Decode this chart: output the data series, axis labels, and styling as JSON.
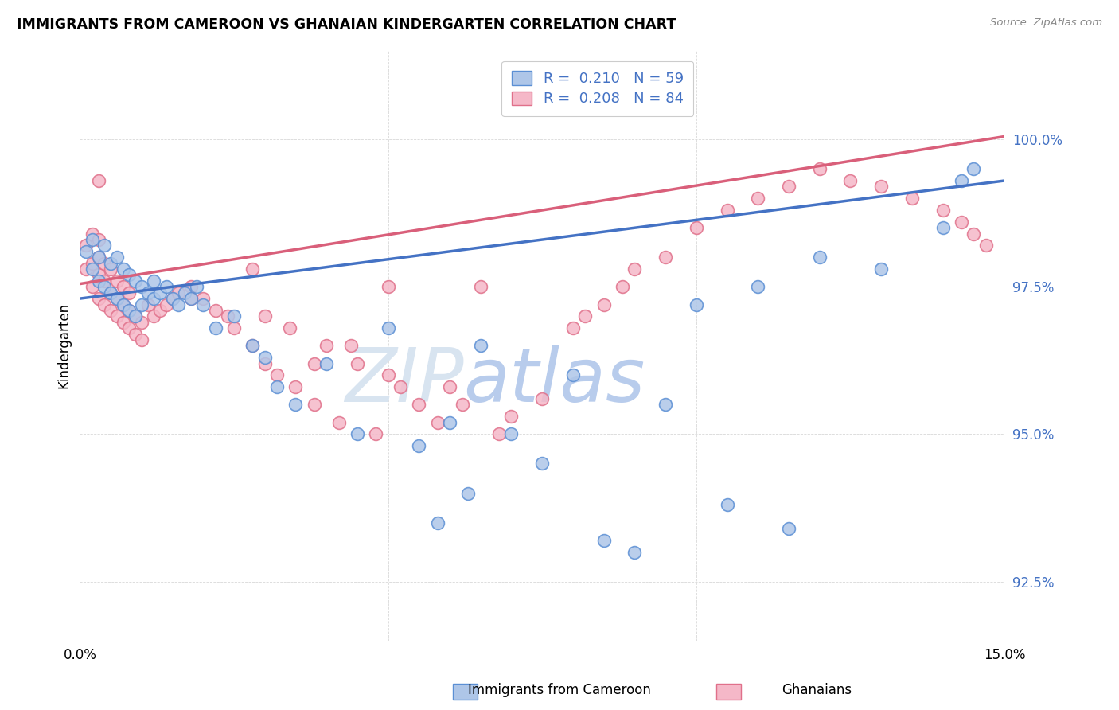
{
  "title": "IMMIGRANTS FROM CAMEROON VS GHANAIAN KINDERGARTEN CORRELATION CHART",
  "source": "Source: ZipAtlas.com",
  "ylabel": "Kindergarten",
  "legend_label1": "Immigrants from Cameroon",
  "legend_label2": "Ghanaians",
  "r1": "0.210",
  "n1": "59",
  "r2": "0.208",
  "n2": "84",
  "color_blue_fill": "#aec6e8",
  "color_pink_fill": "#f5b8c8",
  "color_blue_edge": "#5b8fd4",
  "color_pink_edge": "#e0708a",
  "color_blue_line": "#4472c4",
  "color_pink_line": "#d95f7a",
  "color_blue_text": "#4472c4",
  "color_pink_text": "#d94f6a",
  "background": "#ffffff",
  "grid_color": "#d8d8d8",
  "watermark_color": "#d0dff5",
  "blue_x": [
    0.001,
    0.002,
    0.002,
    0.003,
    0.003,
    0.004,
    0.004,
    0.005,
    0.005,
    0.006,
    0.006,
    0.007,
    0.007,
    0.008,
    0.008,
    0.009,
    0.009,
    0.01,
    0.01,
    0.011,
    0.012,
    0.012,
    0.013,
    0.014,
    0.015,
    0.016,
    0.017,
    0.018,
    0.019,
    0.02,
    0.022,
    0.025,
    0.028,
    0.03,
    0.032,
    0.035,
    0.04,
    0.045,
    0.05,
    0.055,
    0.058,
    0.06,
    0.063,
    0.065,
    0.07,
    0.075,
    0.08,
    0.085,
    0.09,
    0.095,
    0.1,
    0.105,
    0.11,
    0.115,
    0.12,
    0.13,
    0.14,
    0.143,
    0.145
  ],
  "blue_y": [
    98.1,
    97.8,
    98.3,
    98.0,
    97.6,
    97.5,
    98.2,
    97.4,
    97.9,
    97.3,
    98.0,
    97.2,
    97.8,
    97.1,
    97.7,
    97.0,
    97.6,
    97.2,
    97.5,
    97.4,
    97.3,
    97.6,
    97.4,
    97.5,
    97.3,
    97.2,
    97.4,
    97.3,
    97.5,
    97.2,
    96.8,
    97.0,
    96.5,
    96.3,
    95.8,
    95.5,
    96.2,
    95.0,
    96.8,
    94.8,
    93.5,
    95.2,
    94.0,
    96.5,
    95.0,
    94.5,
    96.0,
    93.2,
    93.0,
    95.5,
    97.2,
    93.8,
    97.5,
    93.4,
    98.0,
    97.8,
    98.5,
    99.3,
    99.5
  ],
  "pink_x": [
    0.001,
    0.001,
    0.002,
    0.002,
    0.002,
    0.003,
    0.003,
    0.003,
    0.003,
    0.003,
    0.004,
    0.004,
    0.004,
    0.005,
    0.005,
    0.005,
    0.006,
    0.006,
    0.006,
    0.007,
    0.007,
    0.007,
    0.008,
    0.008,
    0.008,
    0.009,
    0.009,
    0.01,
    0.01,
    0.011,
    0.012,
    0.013,
    0.014,
    0.015,
    0.016,
    0.018,
    0.02,
    0.022,
    0.025,
    0.028,
    0.03,
    0.03,
    0.032,
    0.035,
    0.038,
    0.04,
    0.042,
    0.045,
    0.048,
    0.05,
    0.052,
    0.055,
    0.058,
    0.06,
    0.062,
    0.065,
    0.068,
    0.07,
    0.075,
    0.08,
    0.082,
    0.085,
    0.088,
    0.09,
    0.095,
    0.1,
    0.105,
    0.11,
    0.115,
    0.12,
    0.125,
    0.13,
    0.135,
    0.14,
    0.143,
    0.145,
    0.147,
    0.024,
    0.034,
    0.044,
    0.05,
    0.038,
    0.028,
    0.018
  ],
  "pink_y": [
    97.8,
    98.2,
    97.5,
    97.9,
    98.4,
    97.3,
    97.7,
    98.0,
    98.3,
    99.3,
    97.2,
    97.6,
    97.9,
    97.1,
    97.4,
    97.8,
    97.0,
    97.3,
    97.6,
    96.9,
    97.2,
    97.5,
    96.8,
    97.1,
    97.4,
    96.7,
    97.0,
    96.6,
    96.9,
    97.2,
    97.0,
    97.1,
    97.2,
    97.3,
    97.4,
    97.5,
    97.3,
    97.1,
    96.8,
    96.5,
    96.2,
    97.0,
    96.0,
    95.8,
    95.5,
    96.5,
    95.2,
    96.2,
    95.0,
    96.0,
    95.8,
    95.5,
    95.2,
    95.8,
    95.5,
    97.5,
    95.0,
    95.3,
    95.6,
    96.8,
    97.0,
    97.2,
    97.5,
    97.8,
    98.0,
    98.5,
    98.8,
    99.0,
    99.2,
    99.5,
    99.3,
    99.2,
    99.0,
    98.8,
    98.6,
    98.4,
    98.2,
    97.0,
    96.8,
    96.5,
    97.5,
    96.2,
    97.8,
    97.3
  ],
  "xlim": [
    0.0,
    0.15
  ],
  "ylim": [
    91.5,
    101.5
  ],
  "yticks": [
    92.5,
    95.0,
    97.5,
    100.0
  ],
  "xticks": [
    0.0,
    0.05,
    0.1,
    0.15
  ],
  "blue_line_x0": 0.0,
  "blue_line_x1": 0.15,
  "blue_line_y0": 97.3,
  "blue_line_y1": 99.3,
  "pink_line_x0": 0.0,
  "pink_line_x1": 0.15,
  "pink_line_y0": 97.55,
  "pink_line_y1": 100.05
}
